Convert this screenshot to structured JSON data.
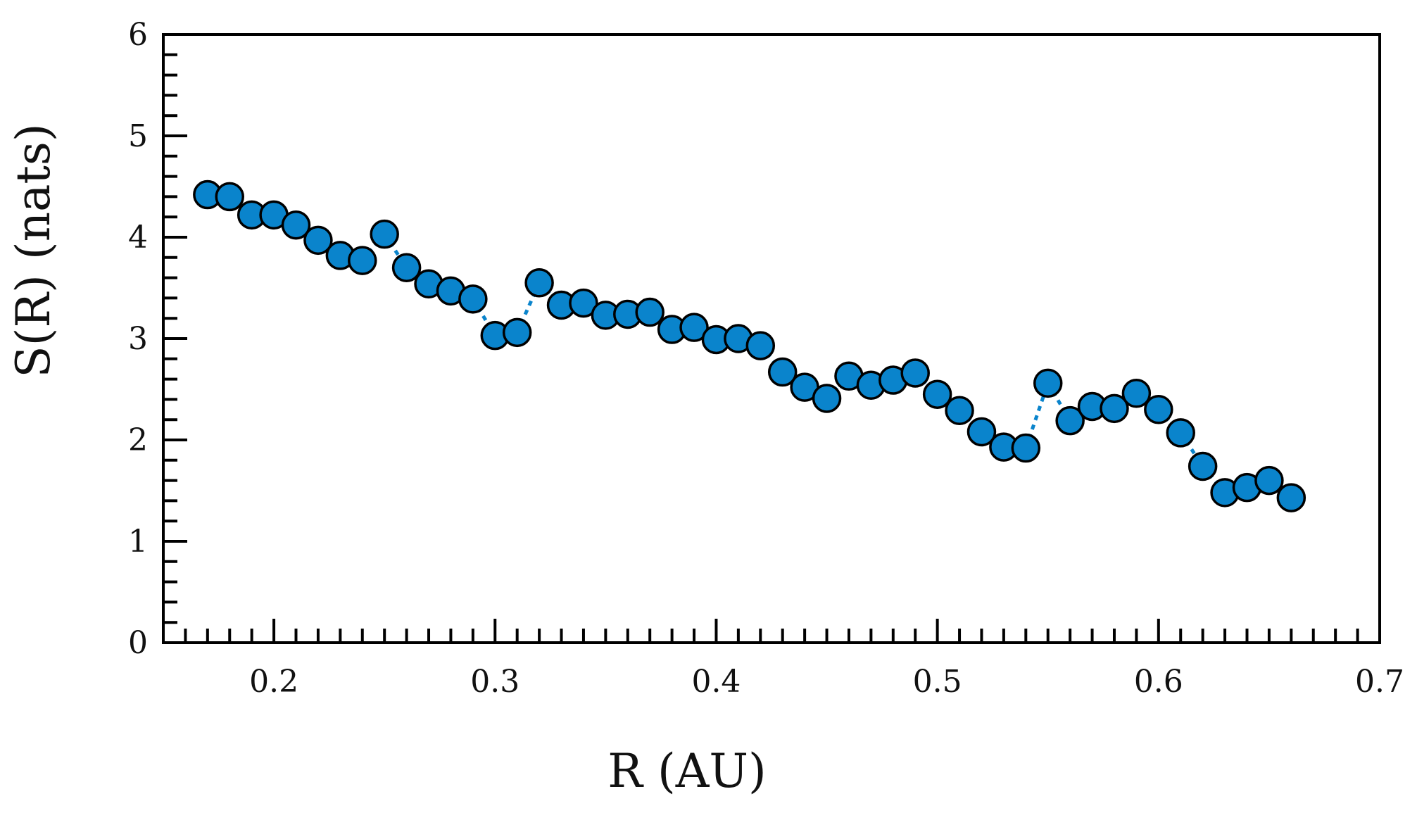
{
  "chart_data": {
    "type": "scatter",
    "title": "",
    "xlabel": "R (AU)",
    "ylabel": "S(R) (nats)",
    "xlim": [
      0.15,
      0.7
    ],
    "ylim": [
      0,
      6
    ],
    "x_ticks": [
      {
        "value": 0.2,
        "label": "0.2"
      },
      {
        "value": 0.3,
        "label": "0.3"
      },
      {
        "value": 0.4,
        "label": "0.4"
      },
      {
        "value": 0.5,
        "label": "0.5"
      },
      {
        "value": 0.6,
        "label": "0.6"
      },
      {
        "value": 0.7,
        "label": "0.7"
      }
    ],
    "y_ticks": [
      {
        "value": 0,
        "label": "0"
      },
      {
        "value": 1,
        "label": "1"
      },
      {
        "value": 2,
        "label": "2"
      },
      {
        "value": 3,
        "label": "3"
      },
      {
        "value": 4,
        "label": "4"
      },
      {
        "value": 5,
        "label": "5"
      },
      {
        "value": 6,
        "label": "6"
      }
    ],
    "x_minor_step": 0.01,
    "y_minor_step": 0.2,
    "grid": false,
    "legend": "none",
    "marker_color": "#0a84cc",
    "marker_edge_color": "#000000",
    "line_style": "dotted",
    "series": [
      {
        "x": [
          0.17,
          0.18,
          0.19,
          0.2,
          0.21,
          0.22,
          0.23,
          0.24,
          0.25,
          0.26,
          0.27,
          0.28,
          0.29,
          0.3,
          0.31,
          0.32,
          0.33,
          0.34,
          0.35,
          0.36,
          0.37,
          0.38,
          0.39,
          0.4,
          0.41,
          0.42,
          0.43,
          0.44,
          0.45,
          0.46,
          0.47,
          0.48,
          0.49,
          0.5,
          0.51,
          0.52,
          0.53,
          0.54,
          0.55,
          0.56,
          0.57,
          0.58,
          0.59,
          0.6,
          0.61,
          0.62,
          0.63,
          0.64,
          0.65,
          0.66
        ],
        "y": [
          4.42,
          4.4,
          4.22,
          4.22,
          4.12,
          3.97,
          3.82,
          3.77,
          4.03,
          3.7,
          3.54,
          3.47,
          3.39,
          3.03,
          3.06,
          3.55,
          3.33,
          3.35,
          3.23,
          3.24,
          3.26,
          3.09,
          3.11,
          2.99,
          3.0,
          2.93,
          2.67,
          2.52,
          2.41,
          2.63,
          2.54,
          2.59,
          2.66,
          2.45,
          2.29,
          2.08,
          1.93,
          1.92,
          2.56,
          2.19,
          2.33,
          2.31,
          2.46,
          2.3,
          2.07,
          1.74,
          1.48,
          1.53,
          1.6,
          1.43
        ]
      }
    ]
  }
}
